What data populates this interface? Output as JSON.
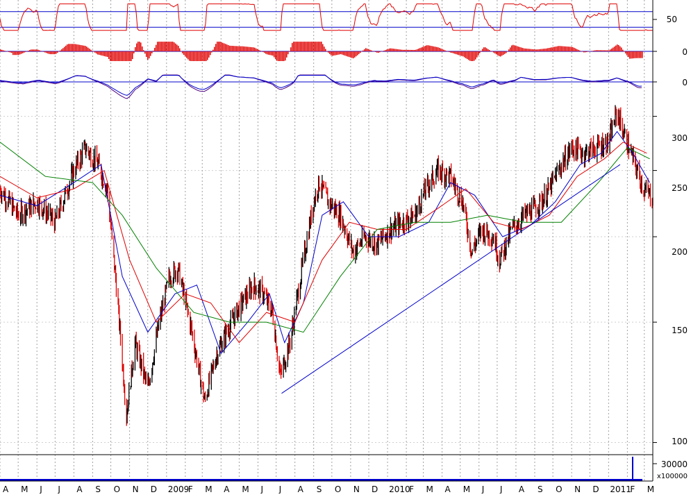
{
  "colors": {
    "background": "#ffffff",
    "price_up": "#000000",
    "price_down": "#e00000",
    "ma_short": "#0000cc",
    "ma_medium": "#e00000",
    "ma_long": "#008000",
    "trendline": "#0000cc",
    "grid": "#a0a0a0",
    "rsi": "#e00000",
    "histogram": "#e00000",
    "signal": "#4b0082",
    "reference_line": "#0000cc",
    "volume": "#0000cc"
  },
  "chart_data": [
    {
      "panel": "rsi",
      "type": "line",
      "title": "",
      "tick_labels": [
        "50"
      ],
      "reference_levels": [
        70,
        30
      ],
      "ylim": [
        0,
        100
      ],
      "grid": true
    },
    {
      "panel": "histogram",
      "type": "bar",
      "title": "",
      "tick_labels": [
        "0"
      ],
      "reference_levels": [
        0
      ],
      "grid": true
    },
    {
      "panel": "oscillator",
      "type": "line",
      "title": "",
      "tick_labels": [
        "0"
      ],
      "reference_levels": [
        0
      ],
      "grid": true
    },
    {
      "panel": "price",
      "type": "candlestick",
      "title": "",
      "scale": "log",
      "ylim": [
        96,
        320
      ],
      "y_tick_labels": [
        "300",
        "250",
        "200",
        "150",
        "100"
      ],
      "y_ticks": [
        300,
        250,
        200,
        150,
        100
      ],
      "x_tick_labels": [
        "A",
        "M",
        "J",
        "J",
        "A",
        "S",
        "O",
        "N",
        "D",
        "2009",
        "F",
        "M",
        "A",
        "M",
        "J",
        "J",
        "A",
        "S",
        "O",
        "N",
        "D",
        "2010",
        "F",
        "M",
        "A",
        "M",
        "J",
        "J",
        "A",
        "S",
        "O",
        "N",
        "D",
        "2011",
        "F",
        "M"
      ],
      "x_range": [
        "2008-04-01",
        "2011-03-15"
      ],
      "grid": true,
      "series": [
        {
          "name": "",
          "kind": "close_path",
          "x": [
            "2008-04-01",
            "2008-05-01",
            "2008-06-01",
            "2008-07-01",
            "2008-08-01",
            "2008-08-20",
            "2008-09-10",
            "2008-09-25",
            "2008-10-10",
            "2008-10-27",
            "2008-11-10",
            "2008-12-01",
            "2008-12-20",
            "2009-01-06",
            "2009-01-20",
            "2009-02-10",
            "2009-03-05",
            "2009-03-25",
            "2009-04-10",
            "2009-05-05",
            "2009-05-25",
            "2009-06-10",
            "2009-06-25",
            "2009-07-08",
            "2009-07-25",
            "2009-08-15",
            "2009-09-01",
            "2009-09-10",
            "2009-09-25",
            "2009-10-15",
            "2009-11-05",
            "2009-11-25",
            "2009-12-15",
            "2010-01-05",
            "2010-01-25",
            "2010-02-15",
            "2010-03-05",
            "2010-03-25",
            "2010-04-15",
            "2010-05-05",
            "2010-05-20",
            "2010-06-05",
            "2010-06-25",
            "2010-07-05",
            "2010-07-25",
            "2010-08-15",
            "2010-09-01",
            "2010-09-20",
            "2010-10-10",
            "2010-11-01",
            "2010-11-20",
            "2010-12-10",
            "2011-01-01",
            "2011-01-15",
            "2011-01-25",
            "2011-02-10",
            "2011-02-28",
            "2011-03-15"
          ],
          "y": [
            235,
            215,
            225,
            210,
            250,
            270,
            255,
            235,
            170,
            110,
            140,
            120,
            150,
            175,
            180,
            148,
            115,
            135,
            145,
            160,
            170,
            165,
            155,
            125,
            142,
            185,
            225,
            240,
            225,
            215,
            190,
            200,
            195,
            205,
            210,
            215,
            235,
            250,
            245,
            225,
            190,
            205,
            200,
            185,
            205,
            215,
            220,
            230,
            250,
            270,
            265,
            270,
            275,
            305,
            285,
            260,
            235,
            228
          ]
        },
        {
          "name": "",
          "kind": "moving_average_short",
          "x": [
            "2008-04-01",
            "2008-06-01",
            "2008-08-01",
            "2008-09-15",
            "2008-10-20",
            "2008-12-01",
            "2009-01-15",
            "2009-02-20",
            "2009-04-01",
            "2009-05-15",
            "2009-06-20",
            "2009-07-15",
            "2009-08-15",
            "2009-09-15",
            "2009-10-20",
            "2009-12-01",
            "2010-01-20",
            "2010-03-10",
            "2010-04-15",
            "2010-05-25",
            "2010-07-10",
            "2010-08-25",
            "2010-10-05",
            "2010-11-15",
            "2010-12-20",
            "2011-01-15",
            "2011-02-10",
            "2011-03-10"
          ],
          "y": [
            230,
            222,
            240,
            255,
            175,
            145,
            165,
            170,
            135,
            150,
            165,
            140,
            160,
            215,
            225,
            200,
            200,
            210,
            240,
            230,
            200,
            208,
            225,
            255,
            265,
            285,
            265,
            240
          ]
        },
        {
          "name": "",
          "kind": "moving_average_medium",
          "x": [
            "2008-04-01",
            "2008-06-01",
            "2008-08-01",
            "2008-09-20",
            "2008-11-01",
            "2008-12-15",
            "2009-02-01",
            "2009-03-15",
            "2009-05-01",
            "2009-06-15",
            "2009-08-01",
            "2009-09-15",
            "2009-10-30",
            "2009-12-15",
            "2010-02-01",
            "2010-03-25",
            "2010-05-10",
            "2010-06-25",
            "2010-08-10",
            "2010-09-25",
            "2010-11-10",
            "2010-12-25",
            "2011-01-25",
            "2011-03-05"
          ],
          "y": [
            245,
            228,
            235,
            250,
            185,
            150,
            165,
            160,
            140,
            155,
            150,
            185,
            210,
            205,
            205,
            220,
            235,
            210,
            205,
            215,
            245,
            260,
            275,
            265
          ]
        },
        {
          "name": "",
          "kind": "moving_average_long",
          "x": [
            "2008-04-01",
            "2008-06-15",
            "2008-09-01",
            "2008-10-20",
            "2008-12-15",
            "2009-02-15",
            "2009-04-15",
            "2009-06-15",
            "2009-08-15",
            "2009-10-15",
            "2009-12-15",
            "2010-02-15",
            "2010-04-15",
            "2010-06-15",
            "2010-08-15",
            "2010-10-15",
            "2010-12-15",
            "2011-02-01",
            "2011-03-10"
          ],
          "y": [
            275,
            245,
            240,
            215,
            180,
            155,
            150,
            150,
            145,
            175,
            205,
            210,
            210,
            215,
            210,
            210,
            240,
            270,
            260
          ]
        },
        {
          "name": "",
          "kind": "trendline",
          "x": [
            "2009-07-10",
            "2011-01-20"
          ],
          "y": [
            118,
            255
          ]
        }
      ]
    },
    {
      "panel": "volume",
      "type": "bar",
      "title": "",
      "tick_labels": [
        "30000"
      ],
      "multiplier_label": "x100000",
      "grid": true,
      "notes": "volume spike near 2011-03"
    }
  ]
}
